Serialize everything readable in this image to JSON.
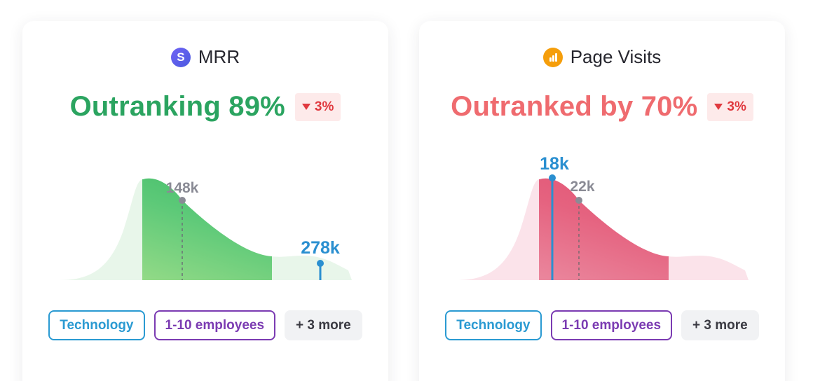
{
  "cards": [
    {
      "title": "MRR",
      "logo_icon": "stripe-s-icon",
      "logo_letter": "S",
      "rank_text": "Outranking 89%",
      "rank_color": "#2ba460",
      "change": "3%",
      "change_direction": "down",
      "median_label": "148k",
      "value_label": "278k",
      "tags": {
        "industry": "Technology",
        "size": "1-10 employees",
        "more": "+ 3 more"
      }
    },
    {
      "title": "Page Visits",
      "logo_icon": "google-analytics-icon",
      "rank_text": "Outranked by 70%",
      "rank_color": "#ef6b6f",
      "change": "3%",
      "change_direction": "down",
      "median_label": "22k",
      "value_label": "18k",
      "tags": {
        "industry": "Technology",
        "size": "1-10 employees",
        "more": "+ 3 more"
      }
    }
  ],
  "colors": {
    "good": "#2ba460",
    "bad": "#ef6b6f",
    "marker": "#2a8fd0",
    "median": "#8a8b95",
    "badge_bg": "#fdeaea",
    "badge_fg": "#e0393f"
  }
}
